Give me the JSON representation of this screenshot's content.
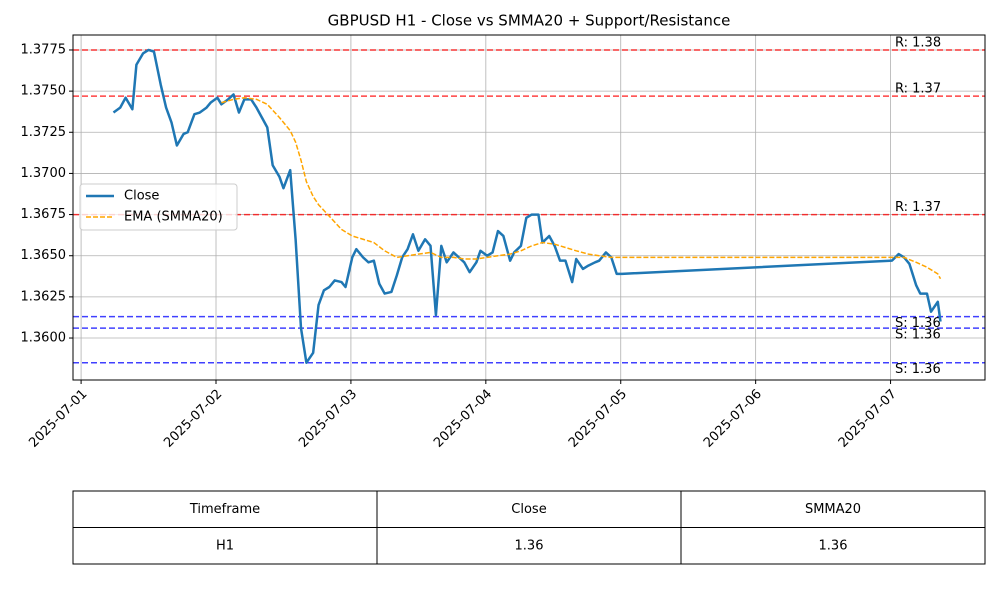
{
  "chart_data": {
    "type": "line",
    "title": "GBPUSD H1 - Close vs SMMA20 + Support/Resistance",
    "xlim": [
      -0.06,
      6.7
    ],
    "xticks": [
      {
        "value": 0,
        "label": "2025-07-01"
      },
      {
        "value": 1,
        "label": "2025-07-02"
      },
      {
        "value": 2,
        "label": "2025-07-03"
      },
      {
        "value": 3,
        "label": "2025-07-04"
      },
      {
        "value": 4,
        "label": "2025-07-05"
      },
      {
        "value": 5,
        "label": "2025-07-06"
      },
      {
        "value": 6,
        "label": "2025-07-07"
      }
    ],
    "ylim": [
      1.35745,
      1.37841
    ],
    "yticks": [
      {
        "value": 1.36,
        "label": "1.3600"
      },
      1.3625,
      {
        "value": 1.365,
        "label": "1.3650"
      },
      1.3675,
      {
        "value": 1.37,
        "label": "1.3700"
      },
      1.3725,
      {
        "value": 1.375,
        "label": "1.3750"
      },
      1.3775
    ],
    "grid": true,
    "legend": "center left",
    "series": [
      {
        "name": "Close",
        "color": "#1f77b4",
        "linestyle": "solid",
        "x": [
          0.24,
          0.29,
          0.33,
          0.38,
          0.41,
          0.46,
          0.5,
          0.54,
          0.59,
          0.63,
          0.67,
          0.71,
          0.76,
          0.79,
          0.84,
          0.88,
          0.93,
          0.96,
          1.01,
          1.04,
          1.09,
          1.13,
          1.17,
          1.21,
          1.26,
          1.3,
          1.34,
          1.38,
          1.42,
          1.47,
          1.5,
          1.55,
          1.59,
          1.63,
          1.67,
          1.72,
          1.76,
          1.8,
          1.84,
          1.88,
          1.93,
          1.96,
          2.01,
          2.04,
          2.09,
          2.13,
          2.17,
          2.21,
          2.25,
          2.3,
          2.34,
          2.38,
          2.42,
          2.46,
          2.5,
          2.55,
          2.59,
          2.63,
          2.67,
          2.71,
          2.76,
          2.8,
          2.84,
          2.88,
          2.93,
          2.96,
          3.01,
          3.05,
          3.09,
          3.13,
          3.18,
          3.21,
          3.26,
          3.3,
          3.34,
          3.39,
          3.42,
          3.47,
          3.51,
          3.55,
          3.59,
          3.64,
          3.67,
          3.72,
          3.76,
          3.81,
          3.84,
          3.89,
          3.93,
          3.97,
          4.01,
          6.01,
          6.06,
          6.1,
          6.14,
          6.19,
          6.22,
          6.27,
          6.3,
          6.35,
          6.37
        ],
        "values": [
          1.3737,
          1.374,
          1.3746,
          1.3739,
          1.3766,
          1.3773,
          1.3775,
          1.3774,
          1.3754,
          1.374,
          1.3731,
          1.3717,
          1.3724,
          1.3725,
          1.3736,
          1.3737,
          1.374,
          1.3743,
          1.3746,
          1.3742,
          1.3745,
          1.3748,
          1.3737,
          1.3745,
          1.3745,
          1.374,
          1.3734,
          1.3728,
          1.3705,
          1.3698,
          1.3691,
          1.3702,
          1.366,
          1.3606,
          1.3585,
          1.3591,
          1.362,
          1.3629,
          1.3631,
          1.3635,
          1.3634,
          1.3631,
          1.3649,
          1.3654,
          1.3649,
          1.3646,
          1.3647,
          1.3633,
          1.3627,
          1.3628,
          1.3638,
          1.3649,
          1.3654,
          1.3663,
          1.3653,
          1.366,
          1.3656,
          1.3614,
          1.3656,
          1.3646,
          1.3652,
          1.3649,
          1.3646,
          1.364,
          1.3646,
          1.3653,
          1.365,
          1.3652,
          1.3665,
          1.3662,
          1.3647,
          1.3652,
          1.3656,
          1.3673,
          1.3675,
          1.3675,
          1.3658,
          1.3662,
          1.3656,
          1.3647,
          1.3647,
          1.3634,
          1.3648,
          1.3642,
          1.3644,
          1.3646,
          1.3647,
          1.3652,
          1.3649,
          1.3639,
          1.3639,
          1.3647,
          1.3651,
          1.3649,
          1.3645,
          1.3632,
          1.3627,
          1.3627,
          1.3616,
          1.3622,
          1.361
        ]
      },
      {
        "name": "EMA (SMMA20)",
        "color": "#ffa500",
        "linestyle": "dashed",
        "x": [
          1.04,
          1.13,
          1.21,
          1.3,
          1.38,
          1.47,
          1.55,
          1.59,
          1.63,
          1.67,
          1.72,
          1.76,
          1.84,
          1.93,
          2.01,
          2.09,
          2.17,
          2.25,
          2.34,
          2.42,
          2.5,
          2.59,
          2.67,
          2.76,
          2.84,
          2.93,
          3.01,
          3.09,
          3.18,
          3.26,
          3.34,
          3.42,
          3.51,
          3.59,
          3.67,
          3.76,
          3.84,
          3.93,
          4.01,
          6.01,
          6.1,
          6.19,
          6.27,
          6.35,
          6.37
        ],
        "values": [
          1.3743,
          1.3745,
          1.3746,
          1.3745,
          1.3742,
          1.3734,
          1.3726,
          1.3719,
          1.3708,
          1.3695,
          1.3686,
          1.3681,
          1.3674,
          1.3666,
          1.3662,
          1.366,
          1.3658,
          1.3653,
          1.3649,
          1.365,
          1.3651,
          1.3652,
          1.3649,
          1.3649,
          1.3648,
          1.3648,
          1.3649,
          1.365,
          1.3651,
          1.3653,
          1.3656,
          1.3658,
          1.3657,
          1.3655,
          1.3653,
          1.3651,
          1.365,
          1.3649,
          1.3649,
          1.3649,
          1.3649,
          1.3646,
          1.3643,
          1.3639,
          1.3636
        ]
      }
    ],
    "hlines": [
      {
        "value": 1.3775,
        "label": "R: 1.38",
        "color": "#ff0000"
      },
      {
        "value": 1.3747,
        "label": "R: 1.37",
        "color": "#ff0000"
      },
      {
        "value": 1.3675,
        "label": "R: 1.37",
        "color": "#ff0000"
      },
      {
        "value": 1.3613,
        "label": "S: 1.36",
        "color": "#0000ff"
      },
      {
        "value": 1.3606,
        "label": "S: 1.36",
        "color": "#0000ff"
      },
      {
        "value": 1.3585,
        "label": "S: 1.36",
        "color": "#0000ff"
      }
    ]
  },
  "table": {
    "header": [
      "Timeframe",
      "Close",
      "SMMA20"
    ],
    "rows": [
      [
        "H1",
        "1.36",
        "1.36"
      ]
    ]
  }
}
